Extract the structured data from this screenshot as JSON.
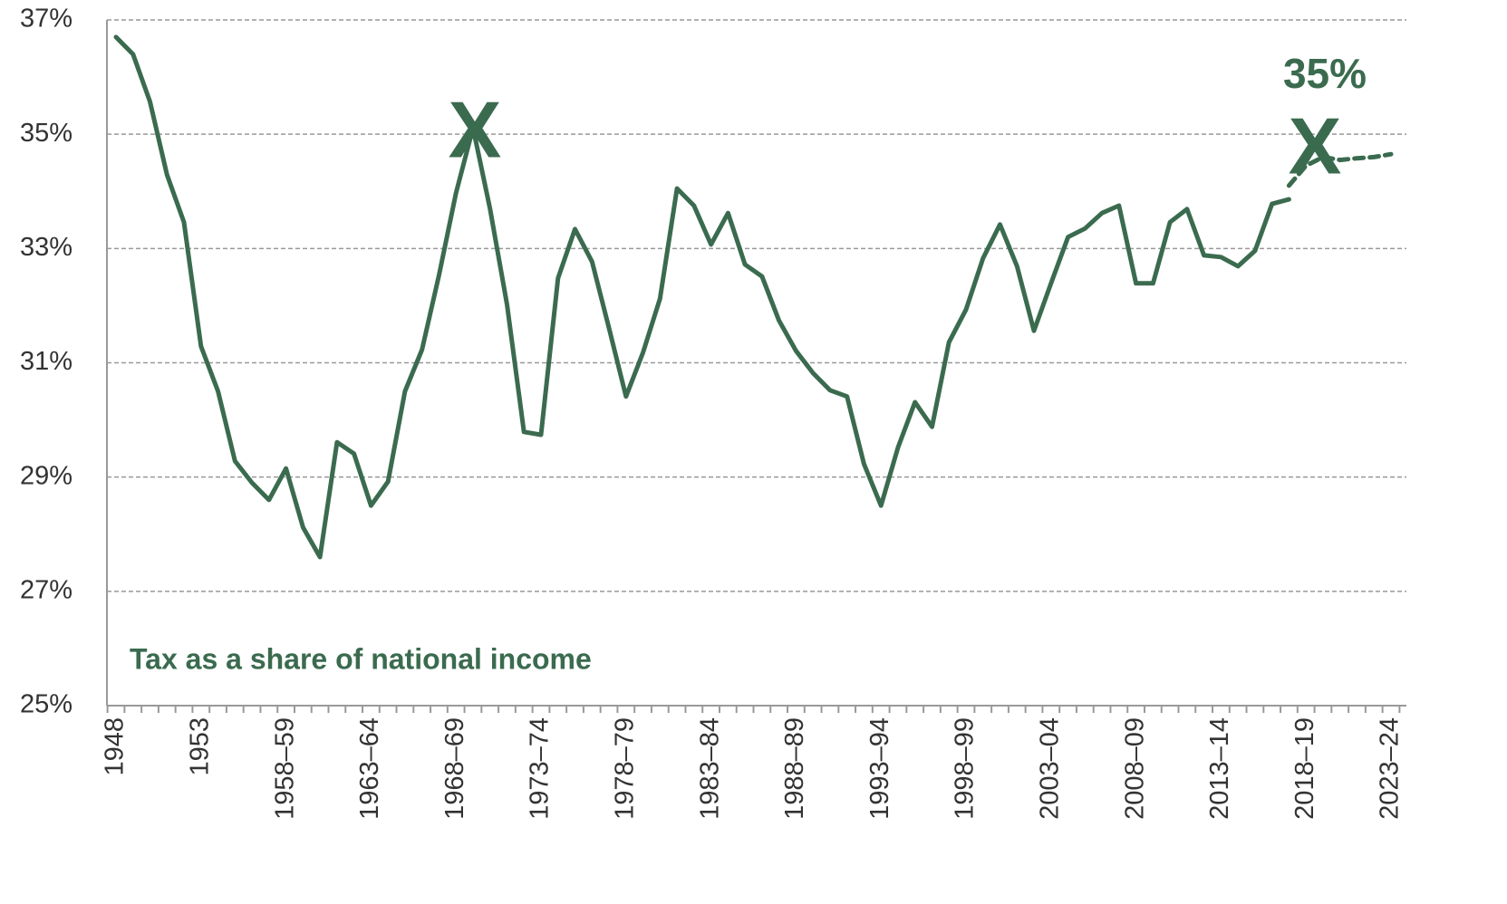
{
  "chart_data": {
    "type": "line",
    "categories": [
      "1948",
      null,
      null,
      null,
      null,
      "1953",
      null,
      null,
      null,
      null,
      "1958–59",
      null,
      null,
      null,
      null,
      "1963–64",
      null,
      null,
      null,
      null,
      "1968–69",
      null,
      null,
      null,
      null,
      "1973–74",
      null,
      null,
      null,
      null,
      "1978–79",
      null,
      null,
      null,
      null,
      "1983–84",
      null,
      null,
      null,
      null,
      "1988–89",
      null,
      null,
      null,
      null,
      "1993–94",
      null,
      null,
      null,
      null,
      "1998–99",
      null,
      null,
      null,
      null,
      "2003–04",
      null,
      null,
      null,
      null,
      "2008–09",
      null,
      null,
      null,
      null,
      "2013–14",
      null,
      null,
      null,
      null,
      "2018–19",
      null,
      null,
      null,
      null,
      "2023–24"
    ],
    "series": [
      {
        "color": "#3b6b4f",
        "dashed": false,
        "values": [
          36.7,
          36.4,
          35.57,
          34.29,
          33.46,
          31.29,
          30.5,
          29.28,
          28.9,
          28.6,
          29.15,
          28.12,
          27.6,
          29.61,
          29.41,
          28.5,
          28.92,
          30.5,
          31.23,
          32.53,
          33.97,
          35.11,
          33.7,
          32.02,
          29.79,
          29.74,
          32.48,
          33.34,
          32.77,
          31.61,
          30.41,
          31.18,
          32.12,
          34.05,
          33.75,
          33.07,
          33.62,
          32.72,
          32.51,
          31.74,
          31.21,
          30.82,
          30.52,
          30.41,
          29.23,
          28.5,
          29.52,
          30.31,
          29.88,
          31.36,
          31.93,
          32.83,
          33.42,
          32.69,
          31.56,
          32.39,
          33.2,
          33.35,
          33.62,
          33.75,
          32.39,
          32.39,
          33.46,
          33.69,
          32.88,
          32.85,
          32.69,
          32.96,
          33.78,
          33.86,
          null,
          null,
          null,
          null,
          null,
          null
        ]
      },
      {
        "color": "#3b6b4f",
        "dashed": true,
        "values": [
          null,
          null,
          null,
          null,
          null,
          null,
          null,
          null,
          null,
          null,
          null,
          null,
          null,
          null,
          null,
          null,
          null,
          null,
          null,
          null,
          null,
          null,
          null,
          null,
          null,
          null,
          null,
          null,
          null,
          null,
          null,
          null,
          null,
          null,
          null,
          null,
          null,
          null,
          null,
          null,
          null,
          null,
          null,
          null,
          null,
          null,
          null,
          null,
          null,
          null,
          null,
          null,
          null,
          null,
          null,
          null,
          null,
          null,
          null,
          null,
          null,
          null,
          null,
          null,
          null,
          null,
          null,
          null,
          null,
          34.1,
          34.45,
          34.6,
          34.55,
          34.58,
          34.6,
          34.65
        ]
      }
    ],
    "ylim": [
      25,
      37
    ],
    "yticks": [
      {
        "value": 25,
        "label": "25%"
      },
      {
        "value": 27,
        "label": "27%"
      },
      {
        "value": 29,
        "label": "29%"
      },
      {
        "value": 31,
        "label": "31%"
      },
      {
        "value": 33,
        "label": "33%"
      },
      {
        "value": 35,
        "label": "35%"
      },
      {
        "value": 37,
        "label": "37%"
      }
    ],
    "grid": true,
    "annotations": [
      "Tax as a share of national income",
      "X",
      "X",
      "35%"
    ]
  }
}
